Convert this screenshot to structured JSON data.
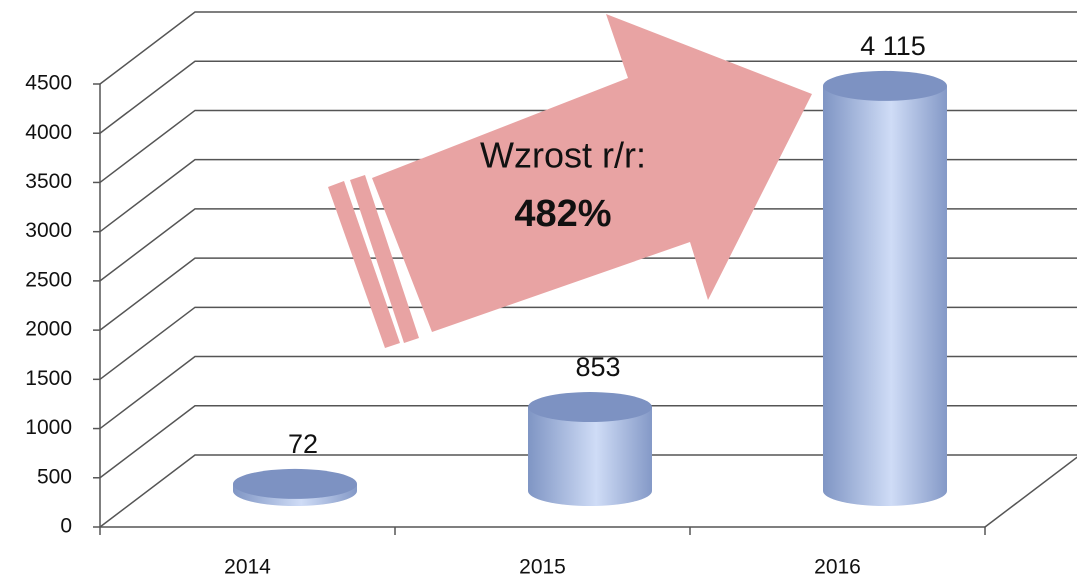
{
  "chart_data": {
    "type": "bar3d",
    "categories": [
      "2014",
      "2015",
      "2016"
    ],
    "values": [
      72,
      853,
      4115
    ],
    "value_labels": [
      "72",
      "853",
      "4 115"
    ],
    "color": "#9fb6e2",
    "ylim": [
      0,
      4500
    ],
    "yticks": [
      0,
      500,
      1000,
      1500,
      2000,
      2500,
      3000,
      3500,
      4000,
      4500
    ],
    "grid": true,
    "annotation": [
      "Wzrost r/r:",
      "482%"
    ]
  }
}
